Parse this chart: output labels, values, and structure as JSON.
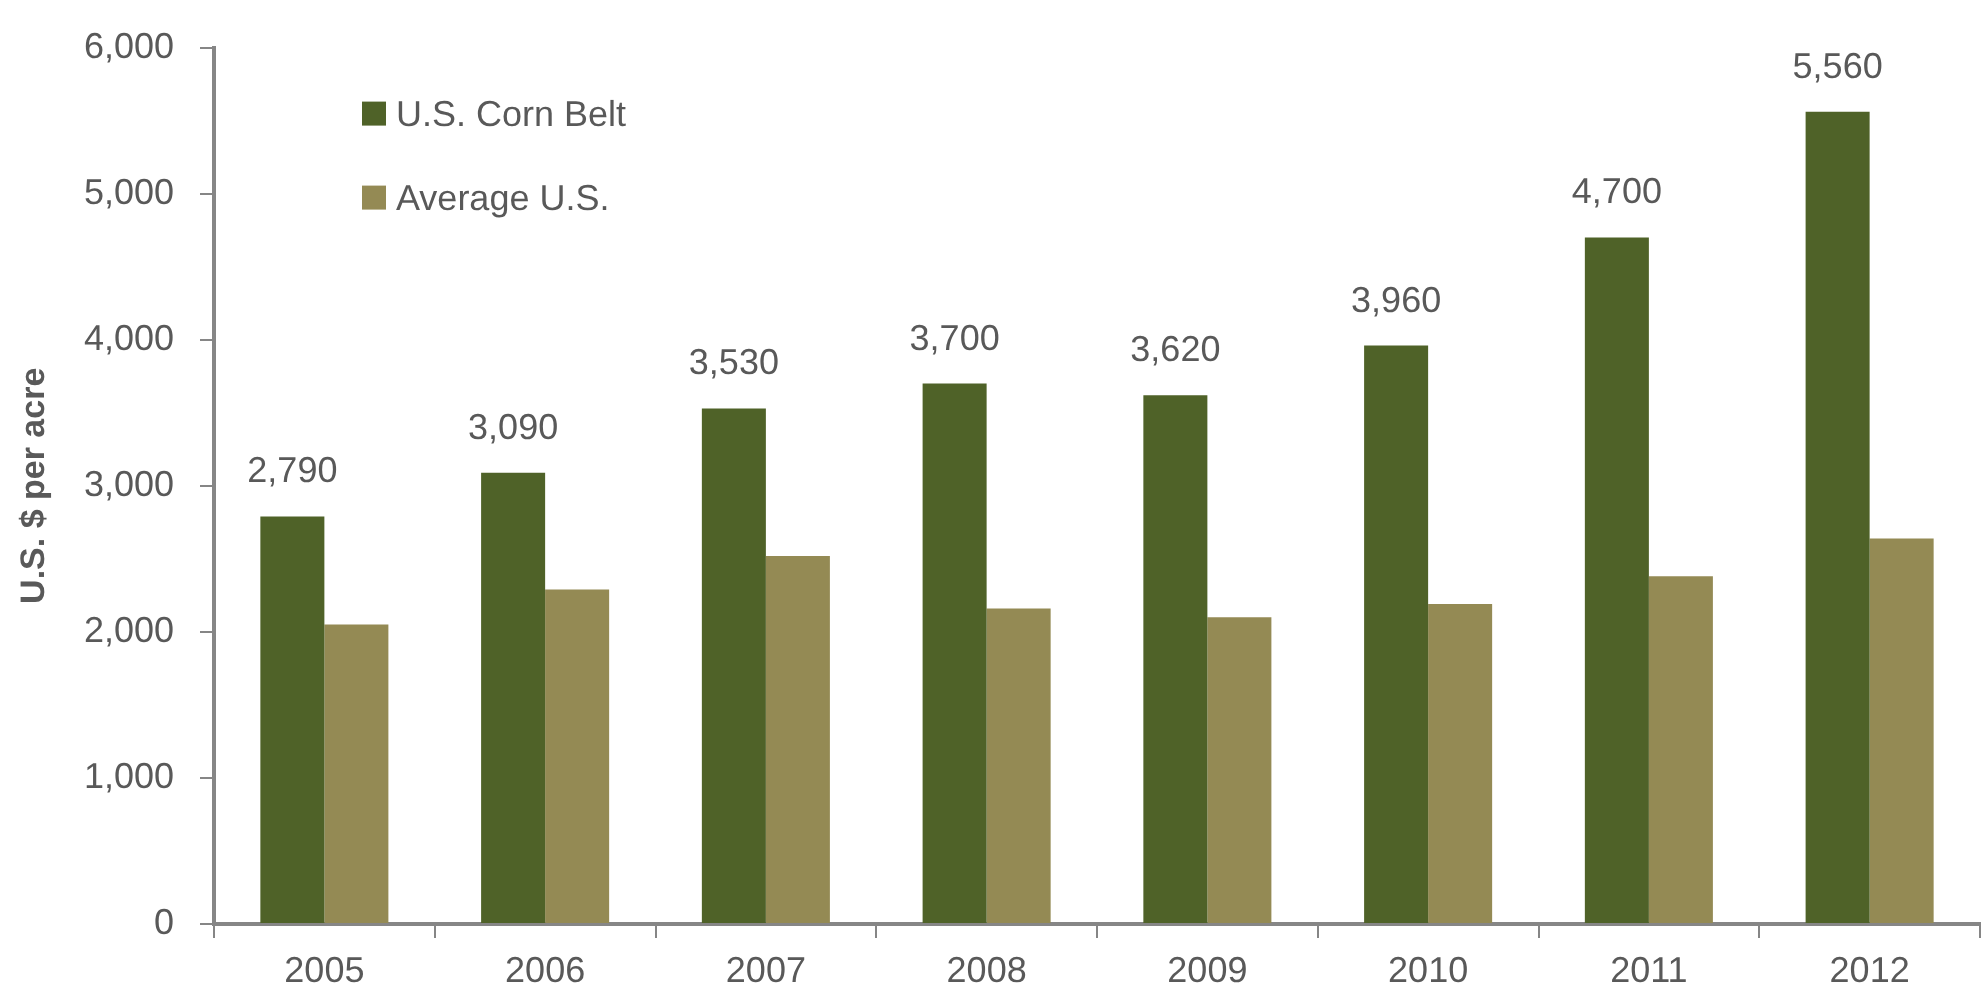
{
  "chart_data": {
    "type": "bar",
    "ylabel": "U.S. $ per acre",
    "categories": [
      "2005",
      "2006",
      "2007",
      "2008",
      "2009",
      "2010",
      "2011",
      "2012"
    ],
    "series": [
      {
        "name": "U.S. Corn Belt",
        "color": "#4f6228",
        "values": [
          2790,
          3090,
          3530,
          3700,
          3620,
          3960,
          4700,
          5560
        ],
        "value_labels": [
          "2,790",
          "3,090",
          "3,530",
          "3,700",
          "3,620",
          "3,960",
          "4,700",
          "5,560"
        ]
      },
      {
        "name": "Average U.S.",
        "color": "#948a54",
        "values": [
          2050,
          2290,
          2520,
          2160,
          2100,
          2190,
          2380,
          2640
        ]
      }
    ],
    "ylim": [
      0,
      6000
    ],
    "yticks": [
      0,
      {
        "value": 1000,
        "label": "1,000"
      },
      {
        "value": 2000,
        "label": "2,000"
      },
      {
        "value": 3000,
        "label": "3,000"
      },
      {
        "value": 4000,
        "label": "4,000"
      },
      {
        "value": 5000,
        "label": "5,000"
      },
      {
        "value": 6000,
        "label": "6,000"
      }
    ],
    "grid": false,
    "legend": "top left"
  }
}
